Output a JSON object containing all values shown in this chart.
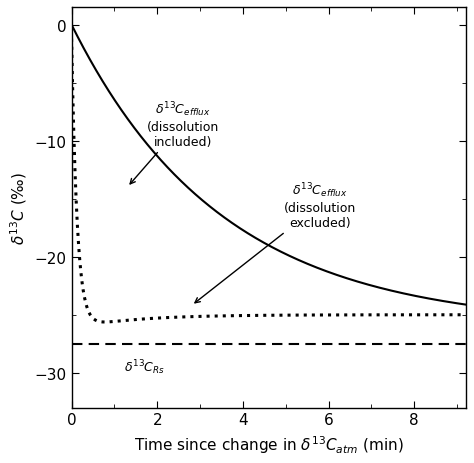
{
  "xlim": [
    0,
    9.2
  ],
  "ylim": [
    -33,
    1.5
  ],
  "yticks": [
    0,
    -10,
    -20,
    -30
  ],
  "xticks": [
    0,
    2,
    4,
    6,
    8
  ],
  "dashed_y": -27.5,
  "solid_C": -26.0,
  "solid_A": 26.0,
  "solid_tau": 3.5,
  "dotted_C": -25.0,
  "dotted_A": 25.0,
  "dotted_B": -1.2,
  "dotted_tau1": 0.13,
  "dotted_tau2": 1.4,
  "background_color": "#ffffff"
}
